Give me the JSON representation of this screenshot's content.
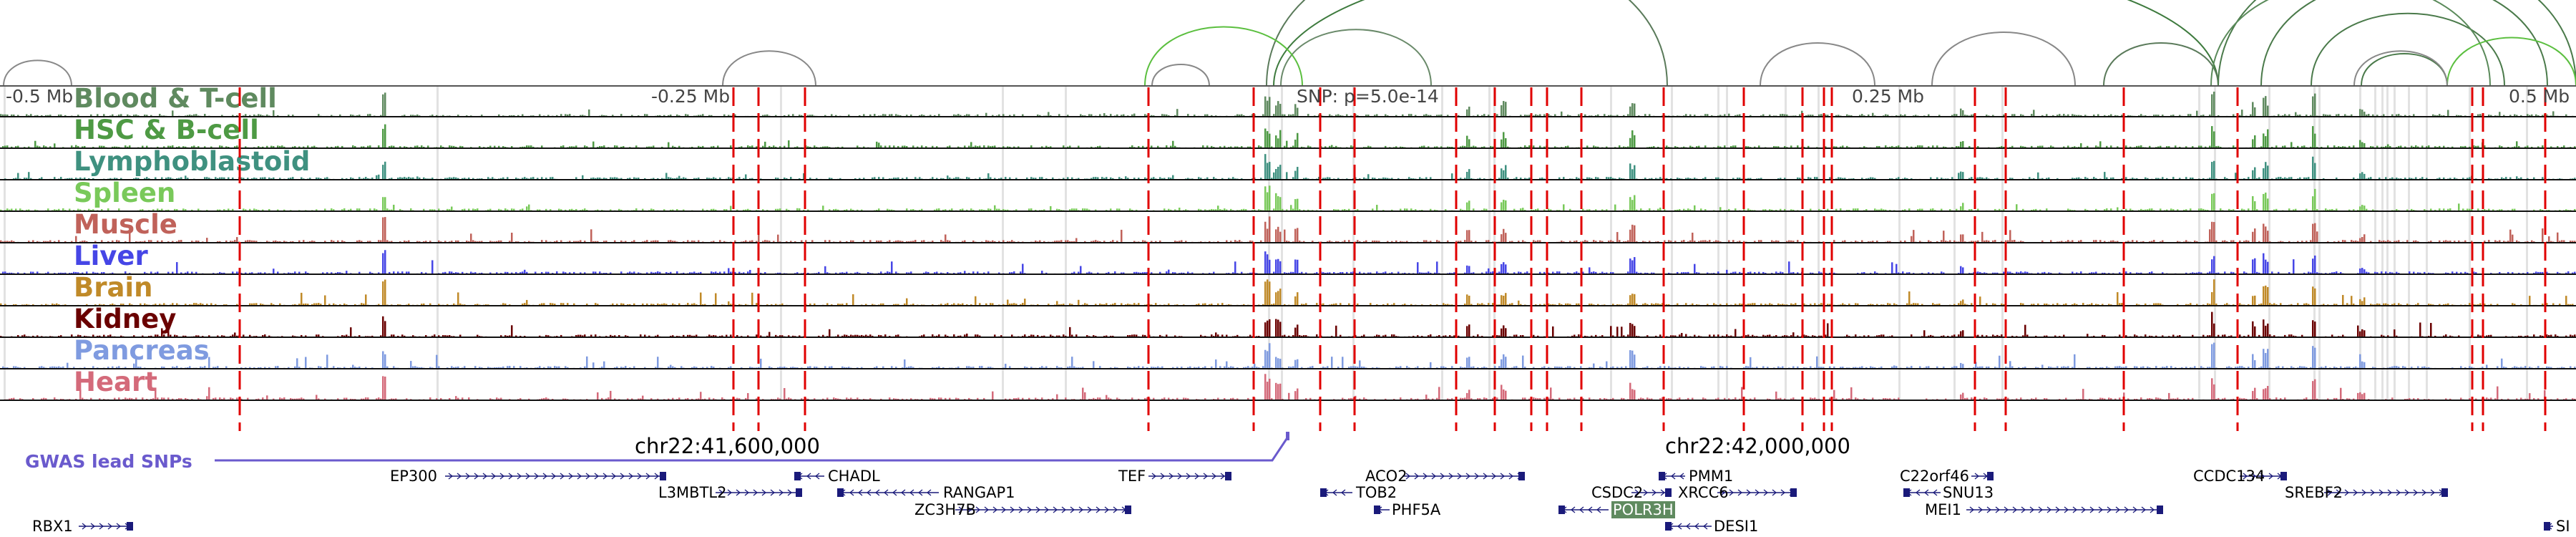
{
  "tracks": [
    {
      "label": "Blood & T-cell",
      "color": "#5f8a5f"
    },
    {
      "label": "HSC & B-cell",
      "color": "#4e9a44"
    },
    {
      "label": "Lymphoblastoid",
      "color": "#3f9180"
    },
    {
      "label": "Spleen",
      "color": "#79c95a"
    },
    {
      "label": "Muscle",
      "color": "#c0625a"
    },
    {
      "label": "Liver",
      "color": "#4646e6"
    },
    {
      "label": "Brain",
      "color": "#c08a28"
    },
    {
      "label": "Kidney",
      "color": "#6a0000"
    },
    {
      "label": "Pancreas",
      "color": "#7f9be0"
    },
    {
      "label": "Heart",
      "color": "#d46a7a"
    }
  ],
  "ticks": [
    "-0.5 Mb",
    "-0.25 Mb",
    "SNP: p=5.0e-14",
    "0.25 Mb",
    "0.5 Mb"
  ],
  "chrom_labels": [
    "chr22:41,600,000",
    "chr22:42,000,000"
  ],
  "gwas_label": "GWAS lead SNPs",
  "genes": [
    {
      "name": "EP300",
      "strand": "+"
    },
    {
      "name": "L3MBTL2",
      "strand": "+"
    },
    {
      "name": "CHADL",
      "strand": "-"
    },
    {
      "name": "RANGAP1",
      "strand": "-"
    },
    {
      "name": "ZC3H7B",
      "strand": "+"
    },
    {
      "name": "TEF",
      "strand": "+"
    },
    {
      "name": "ACO2",
      "strand": "+"
    },
    {
      "name": "TOB2",
      "strand": "-"
    },
    {
      "name": "PHF5A",
      "strand": "-"
    },
    {
      "name": "CSDC2",
      "strand": "+"
    },
    {
      "name": "POLR3H",
      "strand": "-"
    },
    {
      "name": "PMM1",
      "strand": "-"
    },
    {
      "name": "XRCC6",
      "strand": "+"
    },
    {
      "name": "DESI1",
      "strand": "-"
    },
    {
      "name": "C22orf46",
      "strand": "+"
    },
    {
      "name": "SNU13",
      "strand": "-"
    },
    {
      "name": "MEI1",
      "strand": "+"
    },
    {
      "name": "CCDC134",
      "strand": "+"
    },
    {
      "name": "SREBF2",
      "strand": "+"
    },
    {
      "name": "RBX1",
      "strand": "+"
    },
    {
      "name": "SI",
      "strand": "-"
    }
  ],
  "colors": {
    "snp_line": "#e00000",
    "gene": "#1a1a7a",
    "gwas": "#6a5acd",
    "highlight": "#5f8a5f"
  }
}
